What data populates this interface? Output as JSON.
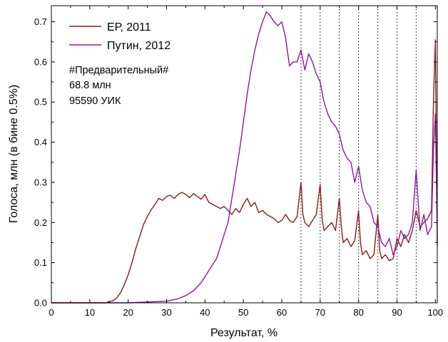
{
  "chart_data": {
    "type": "line",
    "title": "",
    "xlabel": "Результат, %",
    "ylabel": "Голоса, млн (в бине 0.5%)",
    "xlim": [
      0,
      100.5
    ],
    "ylim": [
      0,
      0.74
    ],
    "xticks": [
      0,
      10,
      20,
      30,
      40,
      50,
      60,
      70,
      80,
      90,
      100
    ],
    "yticks": [
      0.0,
      0.1,
      0.2,
      0.3,
      0.4,
      0.5,
      0.6,
      0.7
    ],
    "ytick_labels": [
      "0.0",
      "0.1",
      "0.2",
      "0.3",
      "0.4",
      "0.5",
      "0.6",
      "0.7"
    ],
    "vlines": [
      65,
      70,
      75,
      80,
      85,
      90,
      95
    ],
    "annotations": [
      "#Предварительный#",
      "68.8 млн",
      "95590 УИК"
    ],
    "legend_position": "top-left",
    "series": [
      {
        "name": "ЕР, 2011",
        "color": "#8b1a1a",
        "points": [
          [
            0,
            0
          ],
          [
            14,
            0
          ],
          [
            16,
            0.005
          ],
          [
            17,
            0.012
          ],
          [
            18,
            0.025
          ],
          [
            19,
            0.045
          ],
          [
            20,
            0.07
          ],
          [
            21,
            0.1
          ],
          [
            22,
            0.135
          ],
          [
            23,
            0.165
          ],
          [
            24,
            0.195
          ],
          [
            25,
            0.215
          ],
          [
            26,
            0.232
          ],
          [
            27,
            0.245
          ],
          [
            28,
            0.26
          ],
          [
            29,
            0.255
          ],
          [
            30,
            0.265
          ],
          [
            31,
            0.268
          ],
          [
            32,
            0.26
          ],
          [
            33,
            0.27
          ],
          [
            34,
            0.275
          ],
          [
            35,
            0.27
          ],
          [
            36,
            0.262
          ],
          [
            37,
            0.272
          ],
          [
            38,
            0.265
          ],
          [
            39,
            0.258
          ],
          [
            40,
            0.27
          ],
          [
            41,
            0.25
          ],
          [
            42,
            0.245
          ],
          [
            43,
            0.24
          ],
          [
            44,
            0.235
          ],
          [
            45,
            0.24
          ],
          [
            46,
            0.23
          ],
          [
            47,
            0.22
          ],
          [
            48,
            0.235
          ],
          [
            49,
            0.225
          ],
          [
            50,
            0.245
          ],
          [
            51,
            0.26
          ],
          [
            52,
            0.24
          ],
          [
            53,
            0.25
          ],
          [
            54,
            0.225
          ],
          [
            55,
            0.23
          ],
          [
            56,
            0.22
          ],
          [
            57,
            0.215
          ],
          [
            58,
            0.21
          ],
          [
            59,
            0.2
          ],
          [
            60,
            0.205
          ],
          [
            61,
            0.22
          ],
          [
            62,
            0.205
          ],
          [
            63,
            0.2
          ],
          [
            64,
            0.215
          ],
          [
            65,
            0.3
          ],
          [
            65.5,
            0.22
          ],
          [
            66,
            0.2
          ],
          [
            67,
            0.19
          ],
          [
            68,
            0.205
          ],
          [
            69,
            0.22
          ],
          [
            70,
            0.295
          ],
          [
            70.5,
            0.21
          ],
          [
            71,
            0.18
          ],
          [
            72,
            0.19
          ],
          [
            73,
            0.2
          ],
          [
            74,
            0.18
          ],
          [
            75,
            0.26
          ],
          [
            75.5,
            0.19
          ],
          [
            76,
            0.15
          ],
          [
            77,
            0.16
          ],
          [
            78,
            0.14
          ],
          [
            79,
            0.155
          ],
          [
            80,
            0.23
          ],
          [
            80.5,
            0.15
          ],
          [
            81,
            0.12
          ],
          [
            82,
            0.13
          ],
          [
            83,
            0.11
          ],
          [
            84,
            0.12
          ],
          [
            85,
            0.22
          ],
          [
            85.5,
            0.13
          ],
          [
            86,
            0.11
          ],
          [
            87,
            0.12
          ],
          [
            88,
            0.105
          ],
          [
            89,
            0.11
          ],
          [
            90,
            0.16
          ],
          [
            91,
            0.14
          ],
          [
            92,
            0.17
          ],
          [
            93,
            0.15
          ],
          [
            94,
            0.18
          ],
          [
            95,
            0.23
          ],
          [
            96,
            0.19
          ],
          [
            97,
            0.2
          ],
          [
            98,
            0.21
          ],
          [
            99,
            0.23
          ],
          [
            99.5,
            0.5
          ],
          [
            100,
            0.655
          ],
          [
            100.5,
            0.14
          ]
        ]
      },
      {
        "name": "Путин, 2012",
        "color": "#8b1a9e",
        "points": [
          [
            0,
            0
          ],
          [
            20,
            0
          ],
          [
            30,
            0.004
          ],
          [
            33,
            0.01
          ],
          [
            35,
            0.018
          ],
          [
            37,
            0.03
          ],
          [
            39,
            0.05
          ],
          [
            41,
            0.08
          ],
          [
            43,
            0.11
          ],
          [
            44,
            0.14
          ],
          [
            45,
            0.17
          ],
          [
            46,
            0.2
          ],
          [
            47,
            0.26
          ],
          [
            48,
            0.32
          ],
          [
            49,
            0.38
          ],
          [
            50,
            0.45
          ],
          [
            51,
            0.52
          ],
          [
            52,
            0.58
          ],
          [
            53,
            0.63
          ],
          [
            54,
            0.67
          ],
          [
            55,
            0.7
          ],
          [
            56,
            0.725
          ],
          [
            57,
            0.715
          ],
          [
            58,
            0.7
          ],
          [
            59,
            0.69
          ],
          [
            60,
            0.7
          ],
          [
            61,
            0.66
          ],
          [
            62,
            0.59
          ],
          [
            63,
            0.6
          ],
          [
            64,
            0.6
          ],
          [
            65,
            0.63
          ],
          [
            66,
            0.58
          ],
          [
            67,
            0.62
          ],
          [
            68,
            0.6
          ],
          [
            69,
            0.57
          ],
          [
            70,
            0.55
          ],
          [
            71,
            0.5
          ],
          [
            72,
            0.47
          ],
          [
            73,
            0.45
          ],
          [
            74,
            0.44
          ],
          [
            75,
            0.42
          ],
          [
            76,
            0.38
          ],
          [
            77,
            0.36
          ],
          [
            78,
            0.35
          ],
          [
            79,
            0.3
          ],
          [
            80,
            0.34
          ],
          [
            81,
            0.28
          ],
          [
            82,
            0.25
          ],
          [
            83,
            0.24
          ],
          [
            84,
            0.2
          ],
          [
            85,
            0.19
          ],
          [
            86,
            0.15
          ],
          [
            87,
            0.14
          ],
          [
            88,
            0.16
          ],
          [
            89,
            0.12
          ],
          [
            90,
            0.14
          ],
          [
            91,
            0.18
          ],
          [
            92,
            0.16
          ],
          [
            93,
            0.17
          ],
          [
            94,
            0.2
          ],
          [
            95,
            0.33
          ],
          [
            96,
            0.18
          ],
          [
            97,
            0.22
          ],
          [
            98,
            0.17
          ],
          [
            99,
            0.19
          ],
          [
            99.5,
            0.38
          ],
          [
            100,
            0.47
          ],
          [
            100.5,
            0.15
          ]
        ]
      }
    ]
  }
}
